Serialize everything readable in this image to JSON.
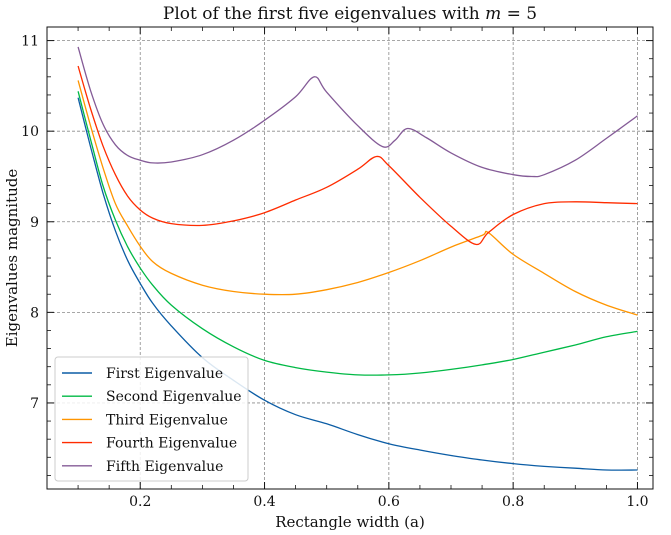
{
  "chart_data": {
    "type": "line",
    "title": "Plot of the first five eigenvalues with m = 5",
    "title_parts": {
      "prefix": "Plot of the first five eigenvalues with ",
      "var": "m",
      "suffix": " = 5"
    },
    "xlabel": "Rectangle width (a)",
    "ylabel": "Eigenvalues magnitude",
    "xlim": [
      0.05,
      1.025
    ],
    "ylim": [
      6.05,
      11.15
    ],
    "xticks": [
      0.2,
      0.4,
      0.6,
      0.8,
      1.0
    ],
    "xtick_labels": [
      "0.2",
      "0.4",
      "0.6",
      "0.8",
      "1.0"
    ],
    "yticks": [
      7,
      8,
      9,
      10,
      11
    ],
    "ytick_labels": [
      "7",
      "8",
      "9",
      "10",
      "11"
    ],
    "grid": true,
    "grid_style": "dashed",
    "legend_position": "lower-left",
    "series": [
      {
        "name": "First Eigenvalue",
        "color": "#0C5DA5",
        "points": [
          [
            0.1,
            10.37
          ],
          [
            0.12,
            9.83
          ],
          [
            0.14,
            9.32
          ],
          [
            0.16,
            8.9
          ],
          [
            0.18,
            8.57
          ],
          [
            0.2,
            8.32
          ],
          [
            0.22,
            8.1
          ],
          [
            0.25,
            7.85
          ],
          [
            0.3,
            7.5
          ],
          [
            0.35,
            7.25
          ],
          [
            0.4,
            7.03
          ],
          [
            0.45,
            6.87
          ],
          [
            0.5,
            6.77
          ],
          [
            0.55,
            6.65
          ],
          [
            0.6,
            6.55
          ],
          [
            0.65,
            6.48
          ],
          [
            0.7,
            6.42
          ],
          [
            0.75,
            6.37
          ],
          [
            0.8,
            6.33
          ],
          [
            0.85,
            6.3
          ],
          [
            0.9,
            6.28
          ],
          [
            0.95,
            6.26
          ],
          [
            1.0,
            6.26
          ]
        ]
      },
      {
        "name": "Second Eigenvalue",
        "color": "#00B945",
        "points": [
          [
            0.1,
            10.44
          ],
          [
            0.12,
            9.91
          ],
          [
            0.14,
            9.4
          ],
          [
            0.16,
            9.02
          ],
          [
            0.18,
            8.72
          ],
          [
            0.2,
            8.49
          ],
          [
            0.22,
            8.3
          ],
          [
            0.25,
            8.08
          ],
          [
            0.3,
            7.82
          ],
          [
            0.35,
            7.62
          ],
          [
            0.4,
            7.47
          ],
          [
            0.45,
            7.39
          ],
          [
            0.5,
            7.34
          ],
          [
            0.55,
            7.31
          ],
          [
            0.6,
            7.31
          ],
          [
            0.65,
            7.33
          ],
          [
            0.7,
            7.37
          ],
          [
            0.75,
            7.42
          ],
          [
            0.8,
            7.48
          ],
          [
            0.85,
            7.56
          ],
          [
            0.9,
            7.64
          ],
          [
            0.95,
            7.73
          ],
          [
            1.0,
            7.79
          ]
        ]
      },
      {
        "name": "Third Eigenvalue",
        "color": "#FF9500",
        "points": [
          [
            0.1,
            10.56
          ],
          [
            0.12,
            10.06
          ],
          [
            0.14,
            9.6
          ],
          [
            0.16,
            9.2
          ],
          [
            0.18,
            8.95
          ],
          [
            0.2,
            8.73
          ],
          [
            0.22,
            8.56
          ],
          [
            0.25,
            8.43
          ],
          [
            0.3,
            8.3
          ],
          [
            0.35,
            8.23
          ],
          [
            0.4,
            8.2
          ],
          [
            0.45,
            8.2
          ],
          [
            0.5,
            8.25
          ],
          [
            0.55,
            8.33
          ],
          [
            0.6,
            8.44
          ],
          [
            0.65,
            8.57
          ],
          [
            0.7,
            8.72
          ],
          [
            0.75,
            8.85
          ],
          [
            0.76,
            8.88
          ],
          [
            0.8,
            8.64
          ],
          [
            0.85,
            8.43
          ],
          [
            0.9,
            8.23
          ],
          [
            0.95,
            8.08
          ],
          [
            1.0,
            7.97
          ]
        ]
      },
      {
        "name": "Fourth Eigenvalue",
        "color": "#FF2C00",
        "points": [
          [
            0.1,
            10.72
          ],
          [
            0.12,
            10.25
          ],
          [
            0.14,
            9.84
          ],
          [
            0.16,
            9.52
          ],
          [
            0.18,
            9.28
          ],
          [
            0.2,
            9.13
          ],
          [
            0.22,
            9.04
          ],
          [
            0.25,
            8.98
          ],
          [
            0.3,
            8.96
          ],
          [
            0.35,
            9.01
          ],
          [
            0.4,
            9.1
          ],
          [
            0.45,
            9.24
          ],
          [
            0.5,
            9.38
          ],
          [
            0.55,
            9.58
          ],
          [
            0.58,
            9.72
          ],
          [
            0.6,
            9.62
          ],
          [
            0.65,
            9.27
          ],
          [
            0.7,
            8.95
          ],
          [
            0.74,
            8.75
          ],
          [
            0.76,
            8.88
          ],
          [
            0.8,
            9.08
          ],
          [
            0.85,
            9.2
          ],
          [
            0.9,
            9.22
          ],
          [
            0.95,
            9.21
          ],
          [
            1.0,
            9.2
          ]
        ]
      },
      {
        "name": "Fifth Eigenvalue",
        "color": "#845B97",
        "points": [
          [
            0.1,
            10.93
          ],
          [
            0.12,
            10.45
          ],
          [
            0.14,
            10.08
          ],
          [
            0.16,
            9.85
          ],
          [
            0.18,
            9.73
          ],
          [
            0.2,
            9.68
          ],
          [
            0.22,
            9.65
          ],
          [
            0.25,
            9.66
          ],
          [
            0.3,
            9.74
          ],
          [
            0.35,
            9.9
          ],
          [
            0.4,
            10.12
          ],
          [
            0.45,
            10.38
          ],
          [
            0.48,
            10.6
          ],
          [
            0.5,
            10.43
          ],
          [
            0.55,
            10.06
          ],
          [
            0.59,
            9.83
          ],
          [
            0.61,
            9.9
          ],
          [
            0.63,
            10.03
          ],
          [
            0.66,
            9.93
          ],
          [
            0.7,
            9.76
          ],
          [
            0.75,
            9.6
          ],
          [
            0.8,
            9.52
          ],
          [
            0.83,
            9.5
          ],
          [
            0.85,
            9.52
          ],
          [
            0.9,
            9.68
          ],
          [
            0.95,
            9.92
          ],
          [
            1.0,
            10.17
          ]
        ]
      }
    ]
  }
}
